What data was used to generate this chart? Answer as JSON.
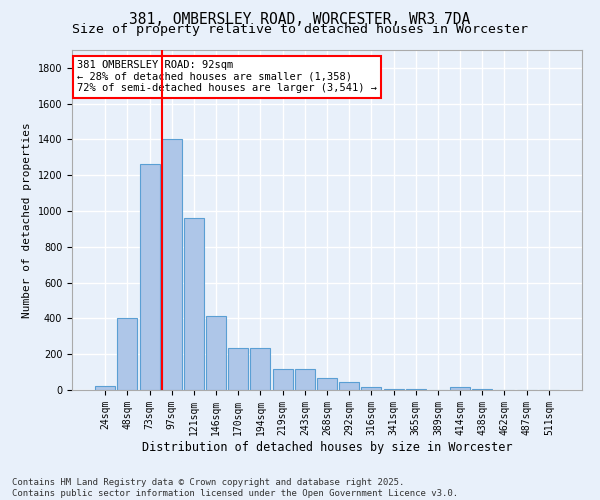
{
  "title": "381, OMBERSLEY ROAD, WORCESTER, WR3 7DA",
  "subtitle": "Size of property relative to detached houses in Worcester",
  "xlabel": "Distribution of detached houses by size in Worcester",
  "ylabel": "Number of detached properties",
  "categories": [
    "24sqm",
    "48sqm",
    "73sqm",
    "97sqm",
    "121sqm",
    "146sqm",
    "170sqm",
    "194sqm",
    "219sqm",
    "243sqm",
    "268sqm",
    "292sqm",
    "316sqm",
    "341sqm",
    "365sqm",
    "389sqm",
    "414sqm",
    "438sqm",
    "462sqm",
    "487sqm",
    "511sqm"
  ],
  "values": [
    25,
    400,
    1265,
    1405,
    960,
    415,
    235,
    235,
    120,
    120,
    65,
    45,
    18,
    5,
    5,
    0,
    15,
    5,
    0,
    0,
    0
  ],
  "bar_color": "#aec6e8",
  "bar_edge_color": "#5a9fd4",
  "property_line_color": "red",
  "annotation_text": "381 OMBERSLEY ROAD: 92sqm\n← 28% of detached houses are smaller (1,358)\n72% of semi-detached houses are larger (3,541) →",
  "annotation_box_color": "white",
  "annotation_box_edge_color": "red",
  "ylim": [
    0,
    1900
  ],
  "yticks": [
    0,
    200,
    400,
    600,
    800,
    1000,
    1200,
    1400,
    1600,
    1800
  ],
  "background_color": "#e8f0fa",
  "grid_color": "white",
  "footer_text": "Contains HM Land Registry data © Crown copyright and database right 2025.\nContains public sector information licensed under the Open Government Licence v3.0.",
  "title_fontsize": 10.5,
  "subtitle_fontsize": 9.5,
  "xlabel_fontsize": 8.5,
  "ylabel_fontsize": 8,
  "tick_fontsize": 7,
  "footer_fontsize": 6.5,
  "annotation_fontsize": 7.5
}
